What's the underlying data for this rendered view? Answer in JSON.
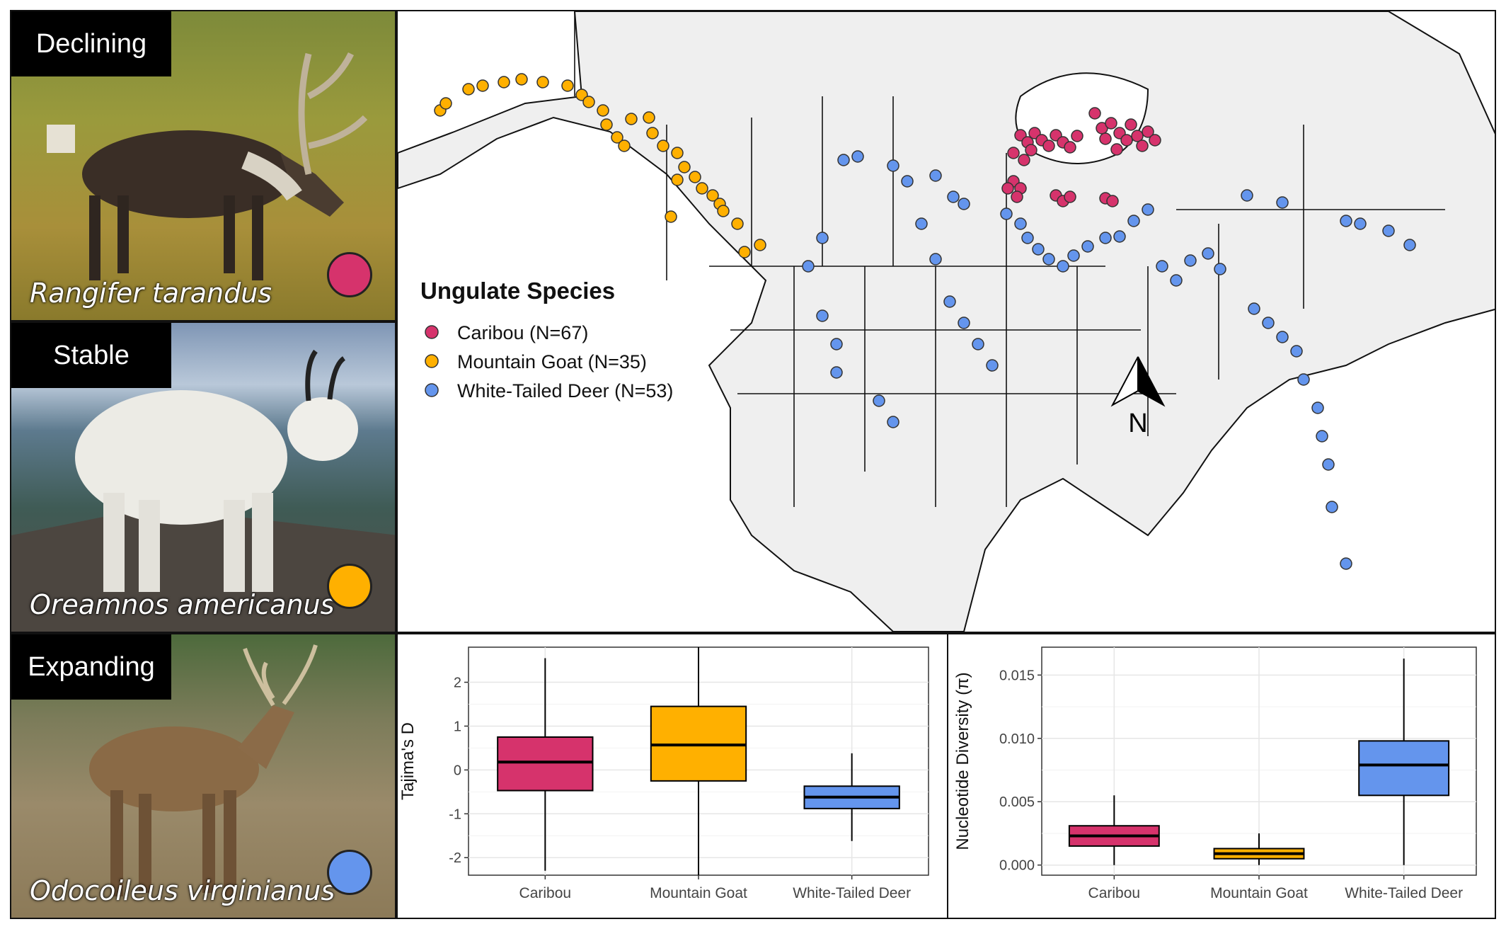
{
  "species": [
    {
      "status": "Declining",
      "latin": "Rangifer tarandus",
      "color": "#d6336c",
      "icon": "caribou-photo"
    },
    {
      "status": "Stable",
      "latin": "Oreamnos americanus",
      "color": "#ffb000",
      "icon": "mountain-goat-photo"
    },
    {
      "status": "Expanding",
      "latin": "Odocoileus virginianus",
      "color": "#6495ed",
      "icon": "white-tailed-deer-photo"
    }
  ],
  "map": {
    "legend_title": "Ungulate Species",
    "legend": [
      {
        "label": "Caribou (N=67)",
        "color": "#d6336c"
      },
      {
        "label": "Mountain Goat (N=35)",
        "color": "#ffb000"
      },
      {
        "label": "White-Tailed Deer (N=53)",
        "color": "#6495ed"
      }
    ],
    "north_label": "N",
    "icon": "north-arrow-icon"
  },
  "chart_data": [
    {
      "type": "boxplot",
      "ylabel": "Tajima's D",
      "categories": [
        "Caribou",
        "Mountain Goat",
        "White-Tailed Deer"
      ],
      "colors": [
        "#d6336c",
        "#ffb000",
        "#6495ed"
      ],
      "ylim": [
        -2.4,
        2.8
      ],
      "yticks": [
        -2,
        -1,
        0,
        1,
        2
      ],
      "ytick_labels": [
        "-2",
        "-1",
        "0",
        "1",
        "2"
      ],
      "grid": true,
      "boxes": [
        {
          "min": -2.3,
          "q1": -0.47,
          "median": 0.18,
          "q3": 0.75,
          "max": 2.55
        },
        {
          "min": -2.6,
          "q1": -0.25,
          "median": 0.57,
          "q3": 1.45,
          "max": 2.8
        },
        {
          "min": -1.62,
          "q1": -0.88,
          "median": -0.62,
          "q3": -0.37,
          "max": 0.38
        }
      ]
    },
    {
      "type": "boxplot",
      "ylabel": "Nucleotide Diversity (π)",
      "categories": [
        "Caribou",
        "Mountain Goat",
        "White-Tailed Deer"
      ],
      "colors": [
        "#d6336c",
        "#ffb000",
        "#6495ed"
      ],
      "ylim": [
        -0.0008,
        0.0172
      ],
      "yticks": [
        0,
        0.005,
        0.01,
        0.015
      ],
      "ytick_labels": [
        "0.000",
        "0.005",
        "0.010",
        "0.015"
      ],
      "grid": true,
      "boxes": [
        {
          "min": 0.0,
          "q1": 0.0015,
          "median": 0.0023,
          "q3": 0.0031,
          "max": 0.0055
        },
        {
          "min": 0.0,
          "q1": 0.0005,
          "median": 0.0009,
          "q3": 0.0013,
          "max": 0.0025
        },
        {
          "min": 0.0,
          "q1": 0.0055,
          "median": 0.0079,
          "q3": 0.0098,
          "max": 0.0163
        }
      ]
    }
  ]
}
